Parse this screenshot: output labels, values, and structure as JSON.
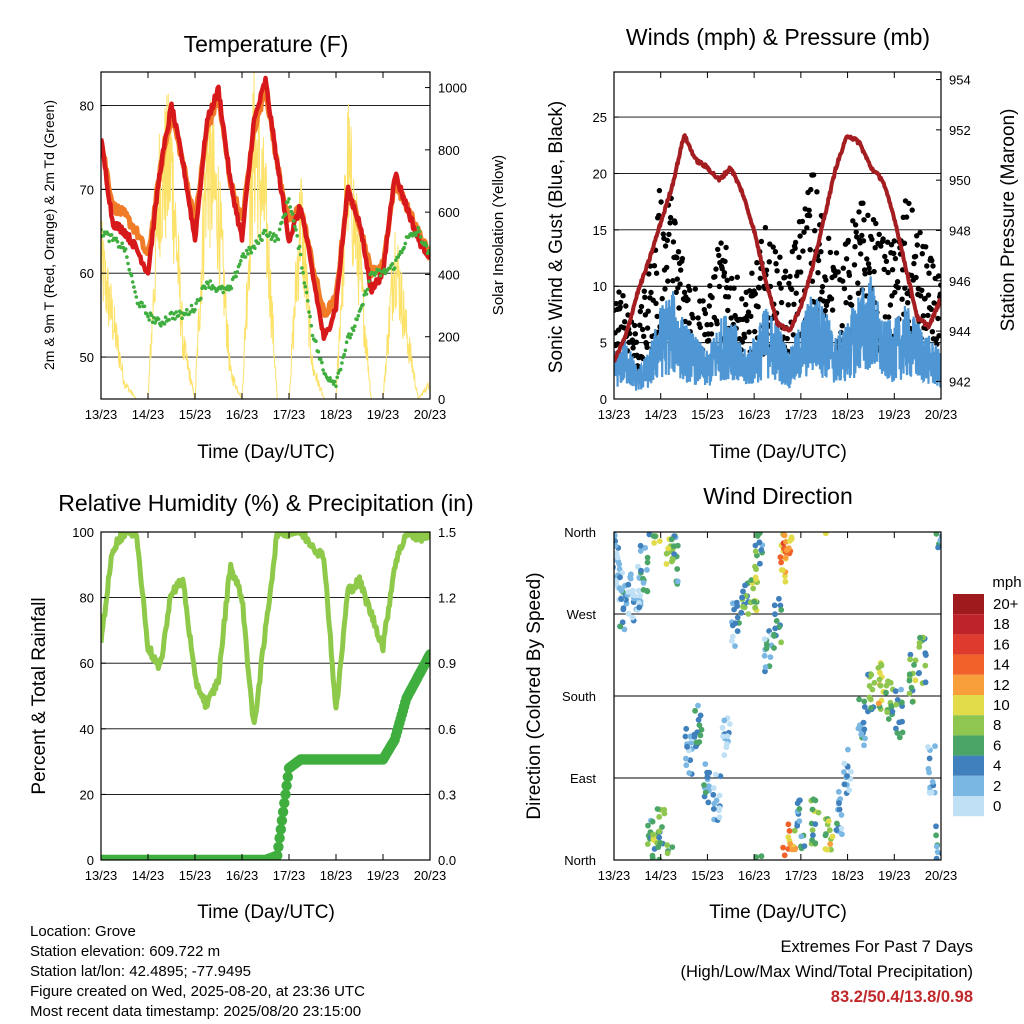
{
  "x_ticks": [
    "13/23",
    "14/23",
    "15/23",
    "16/23",
    "17/23",
    "18/23",
    "19/23",
    "20/23"
  ],
  "x_label": "Time (Day/UTC)",
  "temperature": {
    "title": "Temperature (F)",
    "ylabel_left": "2m & 9m T (Red, Orange) & 2m Td (Green)",
    "ylabel_right": "Solar Insolation (Yellow)",
    "left_ticks": [
      "50",
      "60",
      "70",
      "80"
    ],
    "right_ticks": [
      "0",
      "200",
      "400",
      "600",
      "800",
      "1000"
    ],
    "colors": {
      "t2m": "#d7191c",
      "t9m": "#f07c28",
      "td2m": "#3fae3f",
      "solar": "#fde26a"
    }
  },
  "winds": {
    "title": "Winds (mph) & Pressure (mb)",
    "ylabel_left": "Sonic Wind & Gust (Blue, Black)",
    "ylabel_right": "Station Pressure (Maroon)",
    "left_ticks": [
      "0",
      "5",
      "10",
      "15",
      "20",
      "25"
    ],
    "right_ticks": [
      "942",
      "944",
      "946",
      "948",
      "950",
      "952",
      "954"
    ],
    "colors": {
      "wind": "#4f97d4",
      "gust": "#000000",
      "pressure": "#a31d21"
    }
  },
  "humidity": {
    "title": "Relative Humidity (%) & Precipitation (in)",
    "ylabel_left": "Percent & Total Rainfall",
    "left_ticks": [
      "0",
      "20",
      "40",
      "60",
      "80",
      "100"
    ],
    "right_ticks": [
      "0.0",
      "0.3",
      "0.6",
      "0.9",
      "1.2",
      "1.5"
    ],
    "colors": {
      "rh": "#8ec94a",
      "precip": "#3fae3f"
    }
  },
  "direction": {
    "title": "Wind Direction",
    "ylabel": "Direction (Colored By Speed)",
    "dir_ticks": [
      "North",
      "East",
      "South",
      "West",
      "North"
    ],
    "legend_title": "mph",
    "legend_labels": [
      "20+",
      "18",
      "16",
      "14",
      "12",
      "10",
      "8",
      "6",
      "4",
      "2",
      "0"
    ],
    "legend_colors": [
      "#9e1a1d",
      "#be2329",
      "#de3a2e",
      "#f0622a",
      "#f89e3a",
      "#e2dc4a",
      "#8fc64f",
      "#4aa566",
      "#3f80bd",
      "#7ab7e2",
      "#bfe0f5"
    ]
  },
  "info": {
    "location": "Location: Grove",
    "elevation": "Station elevation: 609.722 m",
    "latlon": "Station lat/lon: 42.4895; -77.9495",
    "created": "Figure created on Wed, 2025-08-20, at 23:36 UTC",
    "timestamp": "Most recent data timestamp: 2025/08/20 23:15:00"
  },
  "extremes": {
    "line1": "Extremes For Past 7 Days",
    "line2": "(High/Low/Max Wind/Total Precipitation)",
    "values": "83.2/50.4/13.8/0.98"
  },
  "chart_data": [
    {
      "type": "line",
      "title": "Temperature (F)",
      "xlabel": "Time (Day/UTC)",
      "ylabel": "2m & 9m T (Red, Orange) & 2m Td (Green)",
      "y2label": "Solar Insolation (Yellow)",
      "x": [
        13.0,
        13.25,
        13.5,
        13.75,
        14.0,
        14.25,
        14.5,
        14.75,
        15.0,
        15.25,
        15.5,
        15.75,
        16.0,
        16.25,
        16.5,
        16.75,
        17.0,
        17.25,
        17.5,
        17.75,
        18.0,
        18.25,
        18.5,
        18.75,
        19.0,
        19.25,
        19.5,
        19.75,
        20.0
      ],
      "ylim": [
        45,
        84
      ],
      "y2lim": [
        0,
        1050
      ],
      "series": [
        {
          "name": "2m T",
          "axis": "left",
          "values": [
            76,
            66,
            65,
            63,
            60,
            72,
            80,
            73,
            64,
            78,
            82,
            71,
            64,
            78,
            83,
            73,
            64,
            68,
            60,
            52,
            56,
            70,
            66,
            58,
            60,
            72,
            68,
            64,
            62
          ]
        },
        {
          "name": "9m T",
          "axis": "left",
          "values": [
            76,
            68,
            67,
            65,
            62,
            72,
            79,
            73,
            66,
            77,
            81,
            71,
            66,
            77,
            82,
            73,
            66,
            68,
            61,
            55,
            57,
            70,
            66,
            60,
            61,
            71,
            68,
            65,
            62
          ]
        },
        {
          "name": "2m Td",
          "axis": "left",
          "values": [
            65,
            64,
            63,
            57,
            55,
            54,
            55,
            55,
            56,
            59,
            58,
            58,
            62,
            63,
            65,
            64,
            69,
            62,
            53,
            48,
            47,
            52,
            55,
            60,
            60,
            61,
            64,
            65,
            62
          ]
        },
        {
          "name": "Solar Insolation",
          "axis": "right",
          "values": [
            520,
            300,
            60,
            0,
            0,
            820,
            880,
            200,
            0,
            900,
            700,
            100,
            0,
            960,
            700,
            0,
            0,
            700,
            120,
            0,
            0,
            880,
            500,
            0,
            0,
            550,
            250,
            0,
            60
          ]
        }
      ]
    },
    {
      "type": "line",
      "title": "Winds (mph) & Pressure (mb)",
      "xlabel": "Time (Day/UTC)",
      "ylabel": "Sonic Wind & Gust (Blue, Black)",
      "y2label": "Station Pressure (Maroon)",
      "x": [
        13.0,
        13.25,
        13.5,
        13.75,
        14.0,
        14.25,
        14.5,
        14.75,
        15.0,
        15.25,
        15.5,
        15.75,
        16.0,
        16.25,
        16.5,
        16.75,
        17.0,
        17.25,
        17.5,
        17.75,
        18.0,
        18.25,
        18.5,
        18.75,
        19.0,
        19.25,
        19.5,
        19.75,
        20.0
      ],
      "ylim": [
        0,
        29
      ],
      "y2lim": [
        941.3,
        954.3
      ],
      "series": [
        {
          "name": "Sonic Wind",
          "axis": "left",
          "values": [
            3,
            4,
            2,
            3,
            6,
            7,
            5,
            4,
            3,
            5,
            6,
            3,
            4,
            6,
            5,
            3,
            5,
            7,
            6,
            4,
            5,
            7,
            8,
            5,
            5,
            6,
            5,
            4,
            3
          ]
        },
        {
          "name": "Gust",
          "axis": "left",
          "values": [
            7,
            8,
            5,
            9,
            15,
            14,
            10,
            8,
            7,
            11,
            10,
            7,
            9,
            12,
            10,
            9,
            13,
            16,
            13,
            10,
            11,
            14,
            13,
            11,
            11,
            14,
            12,
            10,
            8
          ]
        },
        {
          "name": "Station Pressure",
          "axis": "right",
          "values": [
            942.8,
            943.8,
            945.5,
            946.8,
            948.3,
            949.8,
            951.8,
            950.8,
            950.5,
            950.0,
            950.5,
            949.5,
            948.0,
            946.0,
            944.3,
            944.0,
            945.0,
            946.5,
            948.5,
            950.5,
            951.8,
            951.5,
            950.5,
            950.0,
            948.5,
            946.5,
            944.5,
            944.2,
            945.3
          ]
        }
      ]
    },
    {
      "type": "line",
      "title": "Relative Humidity (%) & Precipitation (in)",
      "xlabel": "Time (Day/UTC)",
      "ylabel": "Percent & Total Rainfall",
      "x": [
        13.0,
        13.25,
        13.5,
        13.75,
        14.0,
        14.25,
        14.5,
        14.75,
        15.0,
        15.25,
        15.5,
        15.75,
        16.0,
        16.25,
        16.5,
        16.75,
        17.0,
        17.25,
        17.5,
        17.75,
        18.0,
        18.25,
        18.5,
        18.75,
        19.0,
        19.25,
        19.5,
        19.75,
        20.0
      ],
      "ylim": [
        0,
        100
      ],
      "y2lim": [
        0,
        1.5
      ],
      "series": [
        {
          "name": "Relative Humidity",
          "axis": "left",
          "values": [
            67,
            95,
            100,
            100,
            65,
            58,
            82,
            85,
            55,
            47,
            55,
            90,
            80,
            40,
            70,
            100,
            100,
            100,
            96,
            92,
            45,
            82,
            85,
            75,
            65,
            90,
            100,
            98,
            100
          ]
        },
        {
          "name": "Total Precipitation",
          "axis": "right",
          "values": [
            0,
            0,
            0,
            0,
            0,
            0,
            0,
            0,
            0,
            0,
            0,
            0,
            0,
            0,
            0,
            0.02,
            0.42,
            0.46,
            0.46,
            0.46,
            0.46,
            0.46,
            0.46,
            0.46,
            0.46,
            0.55,
            0.74,
            0.84,
            0.94
          ]
        }
      ]
    },
    {
      "type": "scatter",
      "title": "Wind Direction",
      "xlabel": "Time (Day/UTC)",
      "ylabel": "Direction (Colored By Speed)",
      "ylim": [
        0,
        360
      ],
      "color_scale": {
        "label": "mph",
        "min": 0,
        "max": 20
      },
      "series": [
        {
          "name": "Wind Direction",
          "points": [
            {
              "x": 13.05,
              "dir": 330,
              "speed": 3
            },
            {
              "x": 13.1,
              "dir": 310,
              "speed": 2
            },
            {
              "x": 13.2,
              "dir": 280,
              "speed": 4
            },
            {
              "x": 13.35,
              "dir": 290,
              "speed": 3
            },
            {
              "x": 13.5,
              "dir": 300,
              "speed": 2
            },
            {
              "x": 13.65,
              "dir": 320,
              "speed": 5
            },
            {
              "x": 13.8,
              "dir": 20,
              "speed": 6
            },
            {
              "x": 13.9,
              "dir": 10,
              "speed": 9
            },
            {
              "x": 14.0,
              "dir": 30,
              "speed": 7
            },
            {
              "x": 14.2,
              "dir": 350,
              "speed": 9
            },
            {
              "x": 14.3,
              "dir": 330,
              "speed": 6
            },
            {
              "x": 14.6,
              "dir": 120,
              "speed": 3
            },
            {
              "x": 14.8,
              "dir": 150,
              "speed": 5
            },
            {
              "x": 15.0,
              "dir": 80,
              "speed": 4
            },
            {
              "x": 15.2,
              "dir": 70,
              "speed": 3
            },
            {
              "x": 15.4,
              "dir": 140,
              "speed": 2
            },
            {
              "x": 15.6,
              "dir": 260,
              "speed": 4
            },
            {
              "x": 15.8,
              "dir": 280,
              "speed": 7
            },
            {
              "x": 16.0,
              "dir": 300,
              "speed": 9
            },
            {
              "x": 16.1,
              "dir": 340,
              "speed": 6
            },
            {
              "x": 16.3,
              "dir": 230,
              "speed": 4
            },
            {
              "x": 16.5,
              "dir": 260,
              "speed": 6
            },
            {
              "x": 16.6,
              "dir": 330,
              "speed": 12
            },
            {
              "x": 16.7,
              "dir": 350,
              "speed": 14
            },
            {
              "x": 16.8,
              "dir": 15,
              "speed": 12
            },
            {
              "x": 17.0,
              "dir": 40,
              "speed": 5
            },
            {
              "x": 17.3,
              "dir": 40,
              "speed": 8
            },
            {
              "x": 17.6,
              "dir": 20,
              "speed": 10
            },
            {
              "x": 17.8,
              "dir": 50,
              "speed": 4
            },
            {
              "x": 18.0,
              "dir": 100,
              "speed": 3
            },
            {
              "x": 18.3,
              "dir": 150,
              "speed": 4
            },
            {
              "x": 18.5,
              "dir": 180,
              "speed": 7
            },
            {
              "x": 18.7,
              "dir": 190,
              "speed": 10
            },
            {
              "x": 18.9,
              "dir": 170,
              "speed": 7
            },
            {
              "x": 19.1,
              "dir": 160,
              "speed": 6
            },
            {
              "x": 19.4,
              "dir": 200,
              "speed": 8
            },
            {
              "x": 19.6,
              "dir": 220,
              "speed": 7
            },
            {
              "x": 19.8,
              "dir": 100,
              "speed": 2
            },
            {
              "x": 19.95,
              "dir": 10,
              "speed": 5
            }
          ]
        }
      ]
    }
  ]
}
